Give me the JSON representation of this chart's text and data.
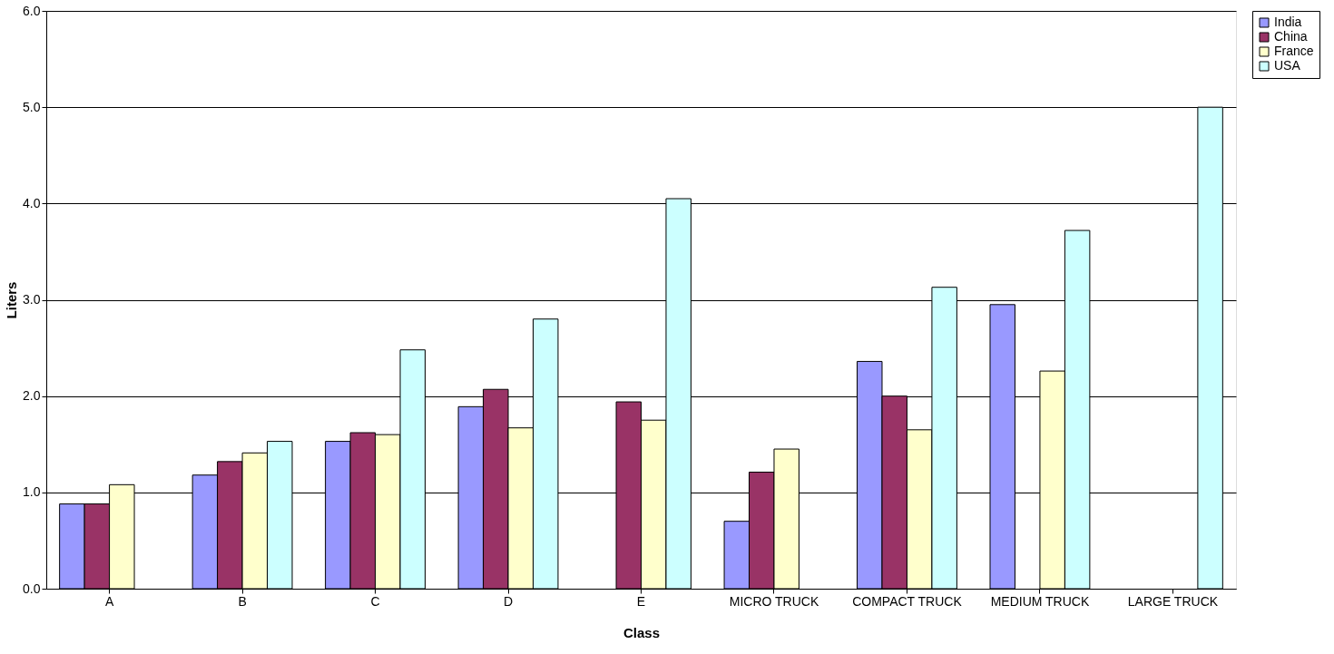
{
  "chart_data": {
    "type": "bar",
    "xlabel": "Class",
    "ylabel": "Liters",
    "categories": [
      "A",
      "B",
      "C",
      "D",
      "E",
      "MICRO TRUCK",
      "COMPACT TRUCK",
      "MEDIUM TRUCK",
      "LARGE TRUCK"
    ],
    "series": [
      {
        "name": "India",
        "color": "#9999ff",
        "values": [
          0.88,
          1.18,
          1.53,
          1.89,
          null,
          0.7,
          2.36,
          2.95,
          null
        ]
      },
      {
        "name": "China",
        "color": "#993366",
        "values": [
          0.88,
          1.32,
          1.62,
          2.07,
          1.94,
          1.21,
          2.0,
          null,
          null
        ]
      },
      {
        "name": "France",
        "color": "#ffffcc",
        "values": [
          1.08,
          1.41,
          1.6,
          1.67,
          1.75,
          1.45,
          1.65,
          2.26,
          null
        ]
      },
      {
        "name": "USA",
        "color": "#ccffff",
        "values": [
          null,
          1.53,
          2.48,
          2.8,
          4.05,
          null,
          3.13,
          3.72,
          5.0
        ]
      }
    ],
    "ylim": [
      0,
      6
    ],
    "yticks": [
      {
        "value": 0,
        "label": "0.0"
      },
      {
        "value": 1,
        "label": "1.0"
      },
      {
        "value": 2,
        "label": "2.0"
      },
      {
        "value": 3,
        "label": "3.0"
      },
      {
        "value": 4,
        "label": "4.0"
      },
      {
        "value": 5,
        "label": "5.0"
      },
      {
        "value": 6,
        "label": "6.0"
      }
    ],
    "grid": "y",
    "legend": "right"
  }
}
